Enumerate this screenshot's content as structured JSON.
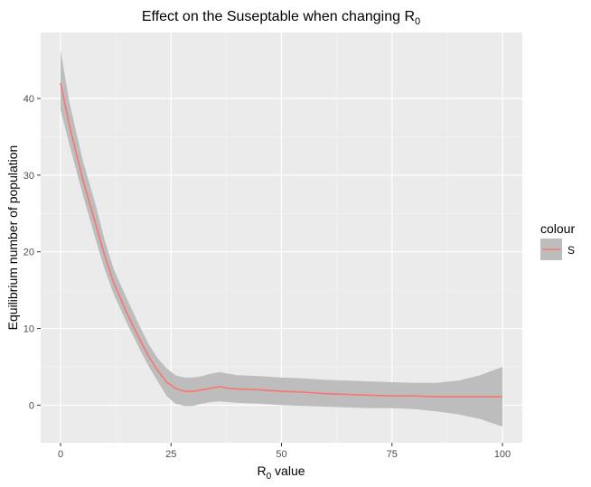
{
  "chart_data": {
    "type": "line",
    "title": {
      "main": "Effect on the Suseptable when changing R",
      "sub": "0"
    },
    "xlabel": {
      "main": "R",
      "sub": "0",
      "rest": " value"
    },
    "ylabel": "Equilibrium number of population",
    "xlim": [
      -4.5,
      104.5
    ],
    "ylim": [
      -4.9,
      48.6
    ],
    "x_ticks": [
      0,
      25,
      50,
      75,
      100
    ],
    "y_ticks": [
      0,
      10,
      20,
      30,
      40
    ],
    "x_tick_labels": [
      "0",
      "25",
      "50",
      "75",
      "100"
    ],
    "y_tick_labels": [
      "0",
      "10",
      "20",
      "30",
      "40"
    ],
    "grid": true,
    "legend": {
      "title": "colour",
      "position": "right"
    },
    "series": [
      {
        "name": "S",
        "color": "#f8766d",
        "ribbon_color": "#bdbdbd",
        "x": [
          0,
          2,
          5,
          8,
          10,
          12,
          15,
          18,
          20,
          22,
          24,
          26,
          28,
          30,
          32,
          34,
          36,
          38,
          40,
          45,
          50,
          55,
          60,
          65,
          70,
          75,
          80,
          85,
          90,
          95,
          100
        ],
        "y": [
          42,
          36.5,
          29.5,
          23.5,
          19.5,
          16,
          12,
          8.5,
          6.3,
          4.5,
          3,
          2.2,
          1.8,
          1.8,
          2,
          2.2,
          2.4,
          2.2,
          2.1,
          2,
          1.8,
          1.7,
          1.5,
          1.4,
          1.3,
          1.2,
          1.2,
          1.1,
          1.1,
          1.1,
          1.1
        ],
        "lower": [
          38.5,
          34,
          27.5,
          21.5,
          17.7,
          14.5,
          10.7,
          7.2,
          5,
          3.1,
          1.2,
          0.2,
          -0.1,
          -0.1,
          0.2,
          0.4,
          0.5,
          0.4,
          0.3,
          0.2,
          0,
          -0.1,
          -0.2,
          -0.3,
          -0.4,
          -0.4,
          -0.5,
          -0.8,
          -1.2,
          -1.8,
          -2.8
        ],
        "upper": [
          46.3,
          39.5,
          32,
          26,
          21.5,
          17.8,
          13.9,
          10.2,
          7.9,
          6.1,
          4.8,
          3.9,
          3.6,
          3.6,
          3.8,
          4.1,
          4.3,
          4.1,
          3.9,
          3.8,
          3.6,
          3.5,
          3.3,
          3.2,
          3.1,
          3,
          2.9,
          2.9,
          3.2,
          3.9,
          5
        ]
      }
    ]
  }
}
